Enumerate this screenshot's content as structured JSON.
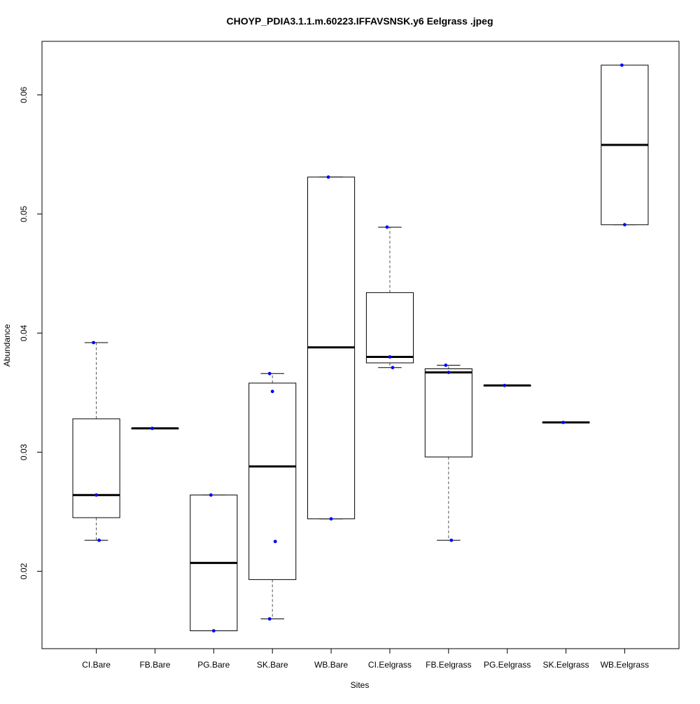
{
  "chart_data": {
    "type": "boxplot",
    "title": "CHOYP_PDIA3.1.1.m.60223.IFFAVSNSK.y6 Eelgrass .jpeg",
    "xlabel": "Sites",
    "ylabel": "Abundance",
    "y_ticks": [
      0.02,
      0.03,
      0.04,
      0.05,
      0.06
    ],
    "y_tick_labels": [
      "0.02",
      "0.03",
      "0.04",
      "0.05",
      "0.06"
    ],
    "ylim": [
      0.0135,
      0.0645
    ],
    "grid": false,
    "colors": {
      "box_stroke": "#000000",
      "median": "#000000",
      "whisker": "#555555",
      "point": "#0000ff"
    },
    "categories": [
      "CI.Bare",
      "FB.Bare",
      "PG.Bare",
      "SK.Bare",
      "WB.Bare",
      "CI.Eelgrass",
      "FB.Eelgrass",
      "PG.Eelgrass",
      "SK.Eelgrass",
      "WB.Eelgrass"
    ],
    "boxes": [
      {
        "label": "CI.Bare",
        "whisker_low": 0.0226,
        "q1": 0.0245,
        "median": 0.0264,
        "q3": 0.0328,
        "whisker_high": 0.0392,
        "points": [
          0.0392,
          0.0264,
          0.0226
        ]
      },
      {
        "label": "FB.Bare",
        "whisker_low": 0.032,
        "q1": 0.032,
        "median": 0.032,
        "q3": 0.032,
        "whisker_high": 0.032,
        "points": [
          0.032
        ]
      },
      {
        "label": "PG.Bare",
        "whisker_low": 0.015,
        "q1": 0.015,
        "median": 0.0207,
        "q3": 0.0264,
        "whisker_high": 0.0264,
        "points": [
          0.0264,
          0.015
        ]
      },
      {
        "label": "SK.Bare",
        "whisker_low": 0.016,
        "q1": 0.0193,
        "median": 0.0288,
        "q3": 0.0358,
        "whisker_high": 0.0366,
        "points": [
          0.0366,
          0.0351,
          0.0225,
          0.016
        ]
      },
      {
        "label": "WB.Bare",
        "whisker_low": 0.0244,
        "q1": 0.0244,
        "median": 0.0388,
        "q3": 0.0531,
        "whisker_high": 0.0531,
        "points": [
          0.0531,
          0.0244
        ]
      },
      {
        "label": "CI.Eelgrass",
        "whisker_low": 0.0371,
        "q1": 0.0375,
        "median": 0.038,
        "q3": 0.0434,
        "whisker_high": 0.0489,
        "points": [
          0.0489,
          0.038,
          0.0371
        ]
      },
      {
        "label": "FB.Eelgrass",
        "whisker_low": 0.0226,
        "q1": 0.0296,
        "median": 0.0367,
        "q3": 0.037,
        "whisker_high": 0.0373,
        "points": [
          0.0373,
          0.0367,
          0.0226
        ]
      },
      {
        "label": "PG.Eelgrass",
        "whisker_low": 0.0356,
        "q1": 0.0356,
        "median": 0.0356,
        "q3": 0.0356,
        "whisker_high": 0.0356,
        "points": [
          0.0356
        ]
      },
      {
        "label": "SK.Eelgrass",
        "whisker_low": 0.0325,
        "q1": 0.0325,
        "median": 0.0325,
        "q3": 0.0325,
        "whisker_high": 0.0325,
        "points": [
          0.0325
        ]
      },
      {
        "label": "WB.Eelgrass",
        "whisker_low": 0.0491,
        "q1": 0.0491,
        "median": 0.0558,
        "q3": 0.0625,
        "whisker_high": 0.0625,
        "points": [
          0.0625,
          0.0491
        ]
      }
    ]
  }
}
